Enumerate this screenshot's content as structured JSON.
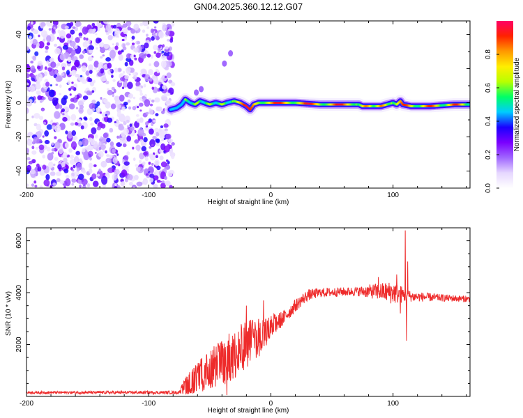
{
  "figure": {
    "title": "GN04.2025.360.12.12.G07"
  },
  "chart_data": [
    {
      "type": "heatmap",
      "name": "spectrogram",
      "xlabel": "Height of straight line (km)",
      "ylabel": "Frequency (Hz)",
      "xlim": [
        -200,
        163
      ],
      "ylim": [
        -50,
        48
      ],
      "xticks": [
        -200,
        -100,
        0,
        100
      ],
      "yticks": [
        -40,
        -20,
        0,
        20,
        40
      ],
      "noise_region_x": [
        -200,
        -80
      ],
      "noise_scatter_count": 1100,
      "ridge": [
        {
          "x": -82,
          "f": -4
        },
        {
          "x": -77,
          "f": -3
        },
        {
          "x": -73,
          "f": -1
        },
        {
          "x": -70,
          "f": 2
        },
        {
          "x": -66,
          "f": 0
        },
        {
          "x": -62,
          "f": -1
        },
        {
          "x": -58,
          "f": 1
        },
        {
          "x": -54,
          "f": 0
        },
        {
          "x": -50,
          "f": -1
        },
        {
          "x": -45,
          "f": 0
        },
        {
          "x": -40,
          "f": -1
        },
        {
          "x": -36,
          "f": 0
        },
        {
          "x": -30,
          "f": 1
        },
        {
          "x": -25,
          "f": 0
        },
        {
          "x": -20,
          "f": -2
        },
        {
          "x": -17,
          "f": -4
        },
        {
          "x": -14,
          "f": -1
        },
        {
          "x": -10,
          "f": 0
        },
        {
          "x": -5,
          "f": 0
        },
        {
          "x": 0,
          "f": 0
        },
        {
          "x": 20,
          "f": 0
        },
        {
          "x": 40,
          "f": -1
        },
        {
          "x": 60,
          "f": -1
        },
        {
          "x": 72,
          "f": -1
        },
        {
          "x": 75,
          "f": -2
        },
        {
          "x": 80,
          "f": -2
        },
        {
          "x": 85,
          "f": -2
        },
        {
          "x": 90,
          "f": -2
        },
        {
          "x": 95,
          "f": -1
        },
        {
          "x": 100,
          "f": 0
        },
        {
          "x": 103,
          "f": -1
        },
        {
          "x": 106,
          "f": 1
        },
        {
          "x": 108,
          "f": -1
        },
        {
          "x": 115,
          "f": -2
        },
        {
          "x": 130,
          "f": -2
        },
        {
          "x": 150,
          "f": -1
        },
        {
          "x": 163,
          "f": -1
        }
      ],
      "outliers": [
        {
          "x": -38,
          "f": 23,
          "amp": 0.05
        },
        {
          "x": -33,
          "f": 29,
          "amp": 0.0
        },
        {
          "x": -61,
          "f": 6,
          "amp": 0.0
        },
        {
          "x": -57,
          "f": 8,
          "amp": 0.0
        }
      ]
    },
    {
      "type": "colorbar",
      "name": "amplitude-colorbar",
      "label": "Normalized spectral amplitude",
      "range": [
        0,
        1
      ],
      "ticks": [
        "0.0",
        "0.2",
        "0.4",
        "0.6",
        "0.8"
      ],
      "tick_values": [
        0,
        0.2,
        0.4,
        0.6,
        0.8
      ],
      "colors": [
        "#ffffff",
        "#e6d7ff",
        "#a066ff",
        "#7a00ff",
        "#1a00ff",
        "#00ccff",
        "#00ff66",
        "#b8ff00",
        "#ffee00",
        "#ff9900",
        "#ff2200",
        "#ff0066"
      ]
    },
    {
      "type": "line",
      "name": "snr-profile",
      "xlabel": "Height of straight line (km)",
      "ylabel": "SNR (10 * v/v)",
      "xlim": [
        -200,
        163
      ],
      "ylim": [
        0,
        6500
      ],
      "xticks": [
        -200,
        -100,
        0,
        100
      ],
      "yticks": [
        2000,
        4000,
        6000
      ],
      "color": "#ee2b2b",
      "profile": [
        {
          "x": -200,
          "base": 150,
          "noise": 50
        },
        {
          "x": -75,
          "base": 150,
          "noise": 60
        },
        {
          "x": -70,
          "base": 400,
          "noise": 350
        },
        {
          "x": -55,
          "base": 900,
          "noise": 700
        },
        {
          "x": -40,
          "base": 1300,
          "noise": 900
        },
        {
          "x": -25,
          "base": 1800,
          "noise": 1000
        },
        {
          "x": -10,
          "base": 2300,
          "noise": 800
        },
        {
          "x": 0,
          "base": 2700,
          "noise": 450
        },
        {
          "x": 10,
          "base": 3000,
          "noise": 300
        },
        {
          "x": 20,
          "base": 3500,
          "noise": 250
        },
        {
          "x": 30,
          "base": 3900,
          "noise": 220
        },
        {
          "x": 40,
          "base": 4000,
          "noise": 180
        },
        {
          "x": 70,
          "base": 4050,
          "noise": 170
        },
        {
          "x": 85,
          "base": 4050,
          "noise": 300
        },
        {
          "x": 100,
          "base": 4000,
          "noise": 450
        },
        {
          "x": 115,
          "base": 3850,
          "noise": 200
        },
        {
          "x": 140,
          "base": 3800,
          "noise": 140
        },
        {
          "x": 163,
          "base": 3750,
          "noise": 120
        }
      ],
      "spikes": [
        {
          "x": 110,
          "y": 6400
        },
        {
          "x": 111,
          "y": 2150
        },
        {
          "x": 112,
          "y": 5200
        },
        {
          "x": 88,
          "y": 4600
        },
        {
          "x": 103,
          "y": 4700
        },
        {
          "x": 106,
          "y": 3200
        },
        {
          "x": -20,
          "y": 3500
        },
        {
          "x": -36,
          "y": 50
        },
        {
          "x": -6,
          "y": 3700
        }
      ]
    }
  ]
}
